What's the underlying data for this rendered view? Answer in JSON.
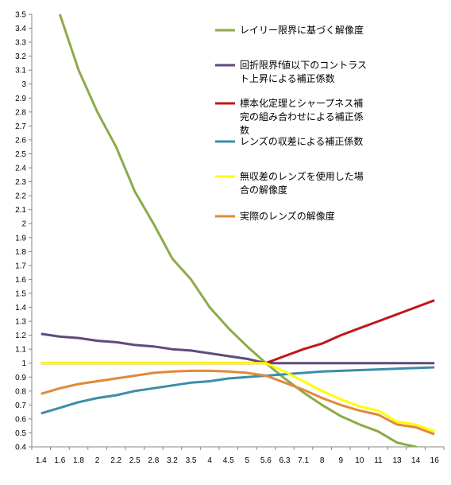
{
  "chart_data": {
    "type": "line",
    "title": "",
    "xlabel": "",
    "ylabel": "",
    "ylim": [
      0.4,
      3.5
    ],
    "y_step": 0.1,
    "grid": false,
    "legend_position": "right (inside plot)",
    "categories": [
      "1.4",
      "1.6",
      "1.8",
      "2",
      "2.2",
      "2.5",
      "2.8",
      "3.2",
      "3.5",
      "4",
      "4.5",
      "5",
      "5.6",
      "6.3",
      "7.1",
      "8",
      "9",
      "10",
      "11",
      "13",
      "14",
      "16"
    ],
    "series": [
      {
        "name": "レイリー限界に基づく解像度",
        "color": "#8bab4a",
        "label_lines": [
          "レイリー限界に基づく解像度"
        ],
        "values": [
          3.75,
          3.5,
          3.1,
          2.8,
          2.55,
          2.23,
          2.0,
          1.75,
          1.6,
          1.4,
          1.25,
          1.12,
          1.0,
          0.89,
          0.79,
          0.7,
          0.62,
          0.56,
          0.51,
          0.43,
          0.4,
          0.35
        ]
      },
      {
        "name": "回折限界f値以下のコントラスト上昇による補正係数",
        "color": "#604a7b",
        "label_lines": [
          "回折限界f値以下のコントラス",
          "ト上昇による補正係数"
        ],
        "values": [
          1.21,
          1.19,
          1.18,
          1.16,
          1.15,
          1.13,
          1.12,
          1.1,
          1.09,
          1.07,
          1.05,
          1.03,
          1.0,
          1.0,
          1.0,
          1.0,
          1.0,
          1.0,
          1.0,
          1.0,
          1.0,
          1.0
        ]
      },
      {
        "name": "標本化定理とシャープネス補完の組み合わせによる補正係数",
        "color": "#c0161b",
        "label_lines": [
          "標本化定理とシャープネス補",
          "完の組み合わせによる補正係",
          "数"
        ],
        "values": [
          1.0,
          1.0,
          1.0,
          1.0,
          1.0,
          1.0,
          1.0,
          1.0,
          1.0,
          1.0,
          1.0,
          1.0,
          1.0,
          1.05,
          1.1,
          1.14,
          1.2,
          1.25,
          1.3,
          1.35,
          1.4,
          1.45
        ]
      },
      {
        "name": "レンズの収差による補正係数",
        "color": "#3c8ea4",
        "label_lines": [
          "レンズの収差による補正係数"
        ],
        "values": [
          0.64,
          0.68,
          0.72,
          0.75,
          0.77,
          0.8,
          0.82,
          0.84,
          0.86,
          0.87,
          0.89,
          0.9,
          0.91,
          0.92,
          0.93,
          0.94,
          0.945,
          0.95,
          0.955,
          0.96,
          0.965,
          0.97
        ]
      },
      {
        "name": "無収差のレンズを使用した場合の解像度",
        "color": "#ffff00",
        "label_lines": [
          "無収差のレンズを使用した場",
          "合の解像度"
        ],
        "values": [
          1.0,
          1.0,
          1.0,
          1.0,
          1.0,
          1.0,
          1.0,
          1.0,
          1.0,
          1.0,
          1.0,
          1.0,
          1.0,
          0.94,
          0.87,
          0.8,
          0.74,
          0.69,
          0.66,
          0.58,
          0.56,
          0.51
        ]
      },
      {
        "name": "実際のレンズの解像度",
        "color": "#e0893a",
        "label_lines": [
          "実際のレンズの解像度"
        ],
        "values": [
          0.78,
          0.82,
          0.85,
          0.87,
          0.89,
          0.91,
          0.93,
          0.94,
          0.945,
          0.945,
          0.94,
          0.93,
          0.91,
          0.86,
          0.81,
          0.75,
          0.7,
          0.66,
          0.63,
          0.56,
          0.54,
          0.49
        ]
      }
    ]
  }
}
